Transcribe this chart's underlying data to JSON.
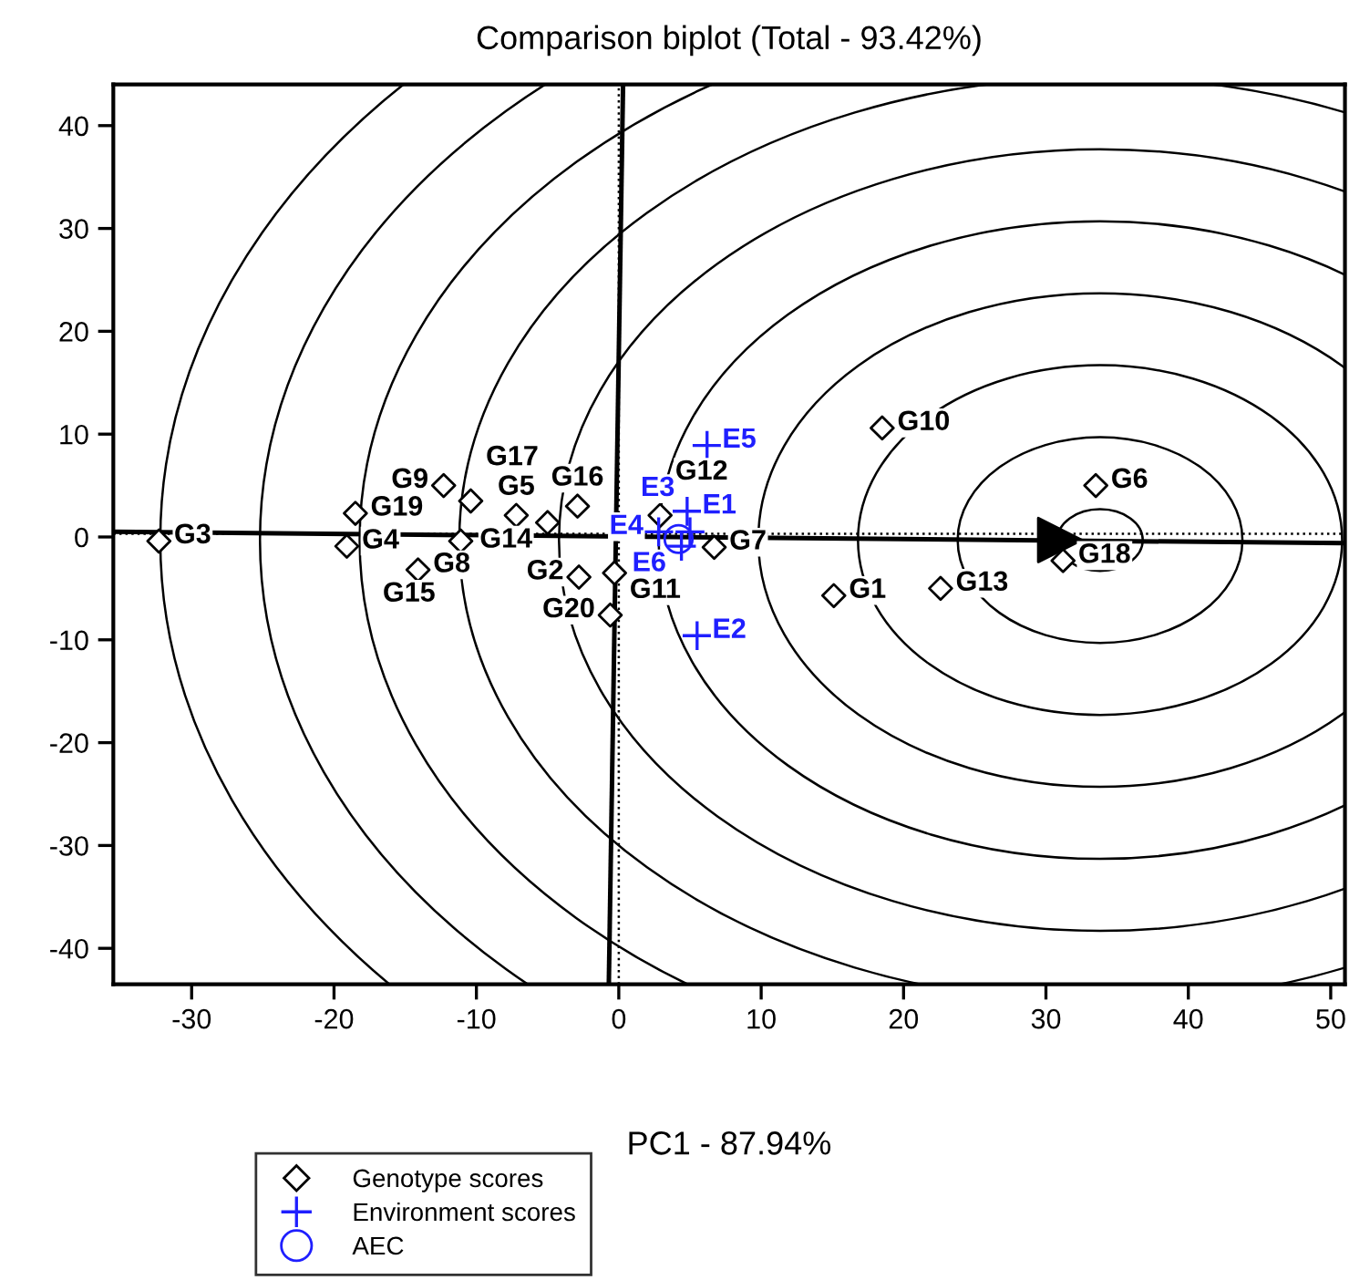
{
  "chart_data": {
    "type": "scatter",
    "title": "Comparison biplot (Total - 93.42%)",
    "xlabel": "PC1 - 87.94%",
    "xlim": [
      -35.5,
      51
    ],
    "ylim": [
      -43.5,
      44
    ],
    "xticks": [
      -30,
      -20,
      -10,
      0,
      10,
      20,
      30,
      40,
      50
    ],
    "yticks": [
      -40,
      -30,
      -20,
      -10,
      0,
      10,
      20,
      30,
      40
    ],
    "grid": false,
    "legend": "bottom",
    "ref_lines": [
      {
        "axis": "x",
        "value": 0,
        "color": "#000000",
        "line_style": "dotted"
      },
      {
        "axis": "y",
        "value": 0.3,
        "color": "#000000",
        "line_style": "dotted"
      }
    ],
    "series": [
      {
        "type": "line",
        "color": "#000000",
        "x": [
          -35.5,
          51
        ],
        "values": [
          0.5,
          -0.6
        ]
      },
      {
        "type": "line",
        "color": "#000000",
        "x": [
          0.3,
          -0.7
        ],
        "values": [
          44,
          -43.5
        ]
      },
      {
        "marker": "triangle",
        "color": "#000000",
        "x": [
          31.0
        ],
        "values": [
          -0.3
        ]
      },
      {
        "name": "Genotype scores",
        "marker": "diamond",
        "color": "#000000",
        "x": [
          15.1,
          -2.8,
          -32.3,
          -19.1,
          -7.2,
          33.5,
          6.7,
          -14.1,
          -12.3,
          18.5,
          -0.3,
          2.9,
          22.6,
          -5.0,
          -11.1,
          -2.9,
          -10.4,
          31.2,
          -18.5,
          -0.6
        ],
        "values": [
          -5.7,
          -3.9,
          -0.4,
          -0.9,
          2.1,
          5.0,
          -1.0,
          -3.2,
          5.0,
          10.6,
          -3.5,
          2.1,
          -5.0,
          1.4,
          -0.4,
          3.0,
          3.5,
          -2.3,
          2.3,
          -7.6
        ],
        "value_labels": [
          "G1",
          "G2",
          "G3",
          "G4",
          "G5",
          "G6",
          "G7",
          "G8",
          "G9",
          "G10",
          "G11",
          "G12",
          "G13",
          "G14",
          "G15",
          "G16",
          "G17",
          "G18",
          "G19",
          "G20"
        ]
      },
      {
        "name": "Environment scores",
        "marker": "cross",
        "color": "#1f1fff",
        "x": [
          4.8,
          5.5,
          5.0,
          2.8,
          6.2,
          4.4
        ],
        "values": [
          2.5,
          -9.6,
          0.5,
          0.5,
          8.9,
          -0.9
        ],
        "value_labels": [
          "E1",
          "E2",
          "E3",
          "E4",
          "E5",
          "E6"
        ]
      },
      {
        "name": "AEC",
        "marker": "circle",
        "color": "#1f1fff",
        "x": [
          4.2
        ],
        "values": [
          -0.2
        ]
      }
    ]
  }
}
